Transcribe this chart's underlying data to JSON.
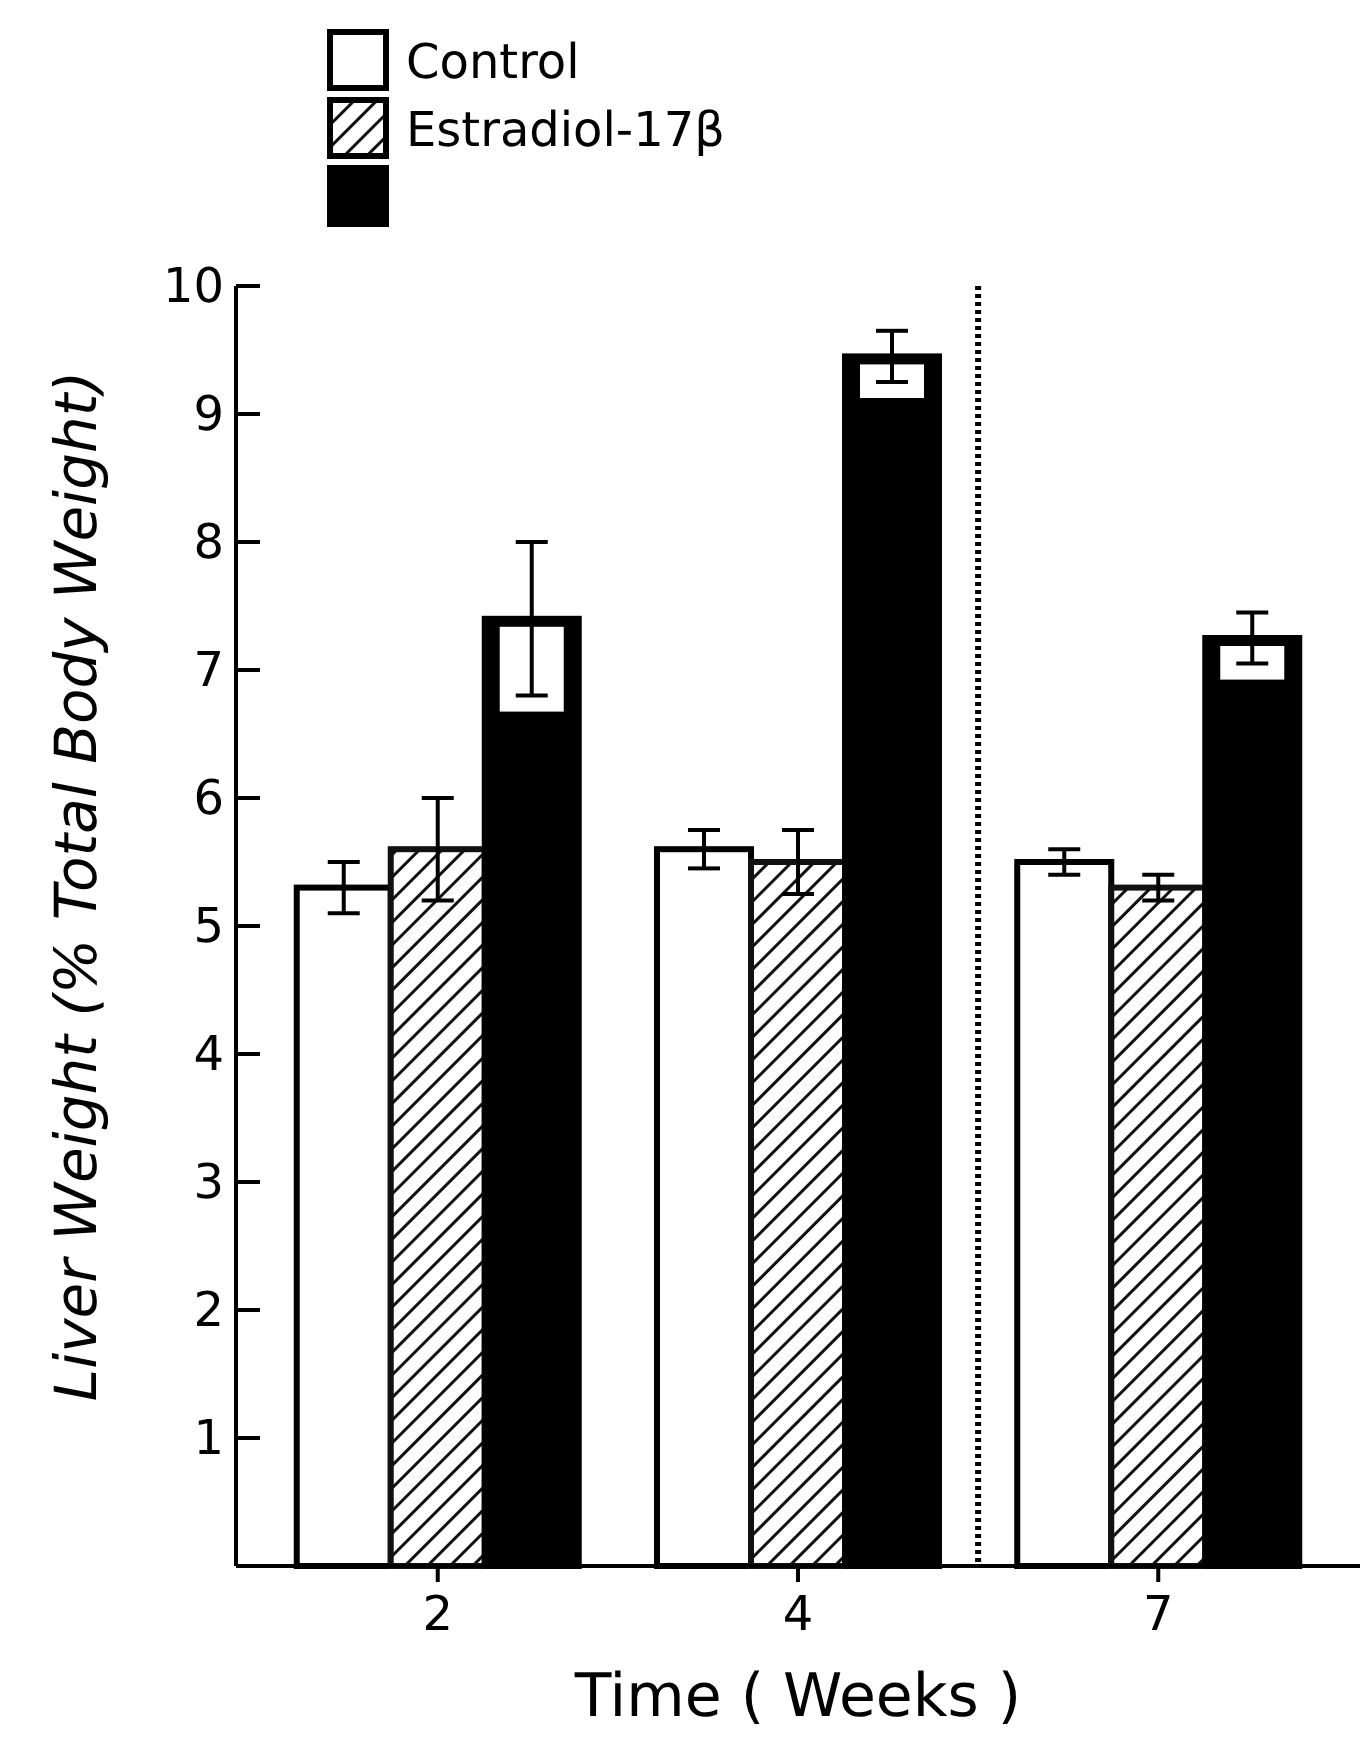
{
  "chart_data": {
    "type": "bar",
    "xlabel": "Time ( Weeks )",
    "ylabel": "Liver Weight (% Total Body Weight)",
    "categories": [
      "2",
      "4",
      "7"
    ],
    "series": [
      {
        "name": "Control",
        "color": "#ffffff",
        "values": [
          5.3,
          5.6,
          5.5
        ],
        "errors": [
          0.2,
          0.15,
          0.1
        ]
      },
      {
        "name": "Estradiol-17β",
        "color": "#111111",
        "values": [
          5.6,
          5.5,
          5.3
        ],
        "errors": [
          0.4,
          0.25,
          0.1
        ]
      },
      {
        "color": "#000000",
        "values": [
          7.4,
          9.45,
          7.25
        ],
        "errors": [
          0.6,
          0.2,
          0.2
        ]
      }
    ],
    "ylim": [
      0,
      10
    ],
    "yticks": [
      1,
      2,
      3,
      4,
      5,
      6,
      7,
      8,
      9,
      10
    ],
    "legend": "top left",
    "grid": false
  }
}
